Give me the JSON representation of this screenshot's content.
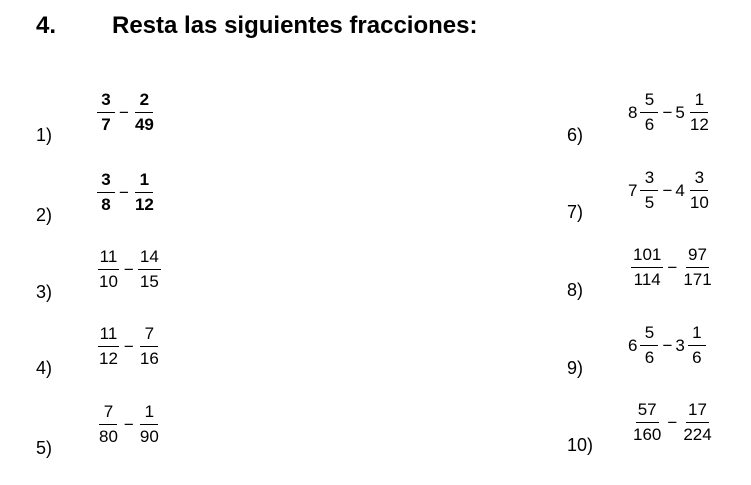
{
  "exercise": {
    "number": "4.",
    "title": "Resta las siguientes fracciones:"
  },
  "problems": [
    {
      "label": "1)",
      "a": {
        "num": "3",
        "den": "7"
      },
      "op": "−",
      "b": {
        "num": "2",
        "den": "49"
      }
    },
    {
      "label": "2)",
      "a": {
        "num": "3",
        "den": "8"
      },
      "op": "−",
      "b": {
        "num": "1",
        "den": "12"
      }
    },
    {
      "label": "3)",
      "a": {
        "num": "11",
        "den": "10"
      },
      "op": "−",
      "b": {
        "num": "14",
        "den": "15"
      }
    },
    {
      "label": "4)",
      "a": {
        "num": "11",
        "den": "12"
      },
      "op": "−",
      "b": {
        "num": "7",
        "den": "16"
      }
    },
    {
      "label": "5)",
      "a": {
        "num": "7",
        "den": "80"
      },
      "op": "−",
      "b": {
        "num": "1",
        "den": "90"
      }
    },
    {
      "label": "6)",
      "a": {
        "whole": "8",
        "num": "5",
        "den": "6"
      },
      "op": "−",
      "b": {
        "whole": "5",
        "num": "1",
        "den": "12"
      }
    },
    {
      "label": "7)",
      "a": {
        "whole": "7",
        "num": "3",
        "den": "5"
      },
      "op": "−",
      "b": {
        "whole": "4",
        "num": "3",
        "den": "10"
      }
    },
    {
      "label": "8)",
      "a": {
        "num": "101",
        "den": "114"
      },
      "op": "−",
      "b": {
        "num": "97",
        "den": "171"
      }
    },
    {
      "label": "9)",
      "a": {
        "whole": "6",
        "num": "5",
        "den": "6"
      },
      "op": "−",
      "b": {
        "whole": "3",
        "num": "1",
        "den": "6"
      }
    },
    {
      "label": "10)",
      "a": {
        "num": "57",
        "den": "160"
      },
      "op": "−",
      "b": {
        "num": "17",
        "den": "224"
      }
    }
  ]
}
